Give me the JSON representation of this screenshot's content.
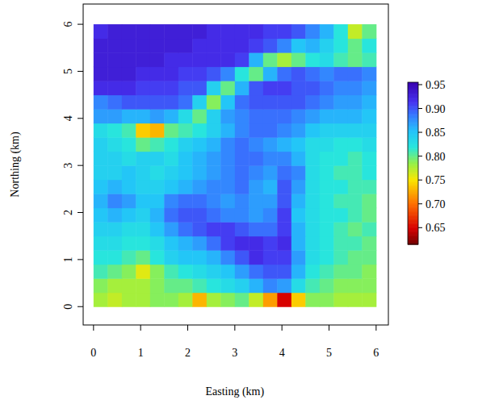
{
  "chart_data": {
    "type": "heatmap",
    "xlabel": "Easting (km)",
    "ylabel": "Northing (km)",
    "xlim": [
      -0.22,
      6.26
    ],
    "ylim": [
      -0.39,
      6.43
    ],
    "xticks": [
      0,
      1,
      2,
      3,
      4,
      5,
      6
    ],
    "yticks": [
      0,
      1,
      2,
      3,
      4,
      5,
      6
    ],
    "x": [
      0.15,
      0.45,
      0.75,
      1.05,
      1.35,
      1.65,
      1.95,
      2.25,
      2.55,
      2.85,
      3.15,
      3.45,
      3.75,
      4.05,
      4.35,
      4.65,
      4.95,
      5.25,
      5.55,
      5.85
    ],
    "y": [
      0.15,
      0.45,
      0.75,
      1.05,
      1.35,
      1.65,
      1.95,
      2.25,
      2.55,
      2.85,
      3.15,
      3.45,
      3.75,
      4.05,
      4.35,
      4.65,
      4.95,
      5.25,
      5.55,
      5.85
    ],
    "values": [
      [
        0.78,
        0.77,
        0.78,
        0.78,
        0.79,
        0.79,
        0.78,
        0.73,
        0.78,
        0.79,
        0.8,
        0.77,
        0.72,
        0.65,
        0.74,
        0.79,
        0.79,
        0.78,
        0.78,
        0.78
      ],
      [
        0.79,
        0.78,
        0.78,
        0.78,
        0.79,
        0.8,
        0.8,
        0.81,
        0.82,
        0.83,
        0.84,
        0.86,
        0.88,
        0.87,
        0.83,
        0.81,
        0.8,
        0.79,
        0.79,
        0.79
      ],
      [
        0.81,
        0.8,
        0.79,
        0.76,
        0.79,
        0.81,
        0.82,
        0.83,
        0.84,
        0.85,
        0.87,
        0.89,
        0.9,
        0.9,
        0.86,
        0.82,
        0.81,
        0.8,
        0.8,
        0.79
      ],
      [
        0.82,
        0.82,
        0.81,
        0.8,
        0.82,
        0.84,
        0.85,
        0.85,
        0.86,
        0.88,
        0.9,
        0.92,
        0.91,
        0.91,
        0.87,
        0.83,
        0.82,
        0.81,
        0.8,
        0.8
      ],
      [
        0.83,
        0.83,
        0.82,
        0.82,
        0.83,
        0.85,
        0.86,
        0.87,
        0.89,
        0.91,
        0.92,
        0.92,
        0.91,
        0.92,
        0.86,
        0.83,
        0.82,
        0.81,
        0.81,
        0.8
      ],
      [
        0.84,
        0.84,
        0.83,
        0.83,
        0.85,
        0.87,
        0.89,
        0.9,
        0.91,
        0.91,
        0.9,
        0.89,
        0.89,
        0.91,
        0.86,
        0.83,
        0.82,
        0.81,
        0.8,
        0.81
      ],
      [
        0.85,
        0.86,
        0.85,
        0.84,
        0.86,
        0.89,
        0.9,
        0.9,
        0.89,
        0.88,
        0.88,
        0.87,
        0.88,
        0.91,
        0.85,
        0.83,
        0.82,
        0.82,
        0.81,
        0.8
      ],
      [
        0.86,
        0.88,
        0.87,
        0.85,
        0.85,
        0.88,
        0.89,
        0.89,
        0.88,
        0.87,
        0.88,
        0.87,
        0.87,
        0.9,
        0.86,
        0.83,
        0.82,
        0.81,
        0.81,
        0.8
      ],
      [
        0.85,
        0.86,
        0.85,
        0.84,
        0.84,
        0.85,
        0.86,
        0.87,
        0.88,
        0.88,
        0.89,
        0.87,
        0.86,
        0.9,
        0.87,
        0.83,
        0.82,
        0.82,
        0.81,
        0.81
      ],
      [
        0.84,
        0.84,
        0.85,
        0.84,
        0.83,
        0.84,
        0.85,
        0.86,
        0.87,
        0.88,
        0.89,
        0.88,
        0.87,
        0.89,
        0.88,
        0.83,
        0.82,
        0.81,
        0.81,
        0.82
      ],
      [
        0.84,
        0.84,
        0.83,
        0.84,
        0.84,
        0.83,
        0.85,
        0.86,
        0.87,
        0.88,
        0.89,
        0.89,
        0.88,
        0.88,
        0.86,
        0.83,
        0.82,
        0.82,
        0.81,
        0.82
      ],
      [
        0.84,
        0.83,
        0.82,
        0.8,
        0.81,
        0.82,
        0.84,
        0.85,
        0.86,
        0.88,
        0.89,
        0.88,
        0.87,
        0.86,
        0.85,
        0.83,
        0.83,
        0.82,
        0.82,
        0.83
      ],
      [
        0.83,
        0.82,
        0.81,
        0.74,
        0.73,
        0.8,
        0.81,
        0.82,
        0.84,
        0.86,
        0.88,
        0.89,
        0.89,
        0.88,
        0.87,
        0.85,
        0.84,
        0.84,
        0.84,
        0.84
      ],
      [
        0.87,
        0.87,
        0.86,
        0.86,
        0.87,
        0.86,
        0.83,
        0.8,
        0.84,
        0.87,
        0.88,
        0.89,
        0.89,
        0.89,
        0.88,
        0.87,
        0.86,
        0.86,
        0.86,
        0.85
      ],
      [
        0.88,
        0.89,
        0.9,
        0.9,
        0.9,
        0.9,
        0.89,
        0.84,
        0.79,
        0.85,
        0.89,
        0.9,
        0.9,
        0.9,
        0.9,
        0.89,
        0.88,
        0.87,
        0.87,
        0.86
      ],
      [
        0.92,
        0.92,
        0.92,
        0.91,
        0.91,
        0.91,
        0.9,
        0.9,
        0.84,
        0.8,
        0.86,
        0.9,
        0.91,
        0.91,
        0.9,
        0.9,
        0.89,
        0.88,
        0.88,
        0.87
      ],
      [
        0.93,
        0.93,
        0.93,
        0.92,
        0.92,
        0.92,
        0.91,
        0.91,
        0.9,
        0.88,
        0.82,
        0.8,
        0.86,
        0.89,
        0.9,
        0.89,
        0.88,
        0.89,
        0.89,
        0.88
      ],
      [
        0.93,
        0.93,
        0.93,
        0.93,
        0.93,
        0.92,
        0.92,
        0.92,
        0.92,
        0.92,
        0.91,
        0.86,
        0.8,
        0.78,
        0.8,
        0.82,
        0.83,
        0.81,
        0.8,
        0.81
      ],
      [
        0.93,
        0.93,
        0.93,
        0.93,
        0.93,
        0.93,
        0.93,
        0.92,
        0.92,
        0.92,
        0.92,
        0.91,
        0.9,
        0.88,
        0.85,
        0.86,
        0.84,
        0.82,
        0.8,
        0.82
      ],
      [
        0.92,
        0.93,
        0.93,
        0.93,
        0.93,
        0.93,
        0.93,
        0.93,
        0.92,
        0.92,
        0.92,
        0.92,
        0.91,
        0.91,
        0.9,
        0.88,
        0.86,
        0.82,
        0.77,
        0.8
      ]
    ],
    "color_range": [
      0.615,
      0.955
    ],
    "color_ticks": [
      0.95,
      {
        "value": 0.9,
        "label": "0.90"
      },
      0.85,
      {
        "value": 0.8,
        "label": "0.80"
      },
      0.75,
      {
        "value": 0.7,
        "label": "0.70"
      },
      0.65
    ]
  }
}
